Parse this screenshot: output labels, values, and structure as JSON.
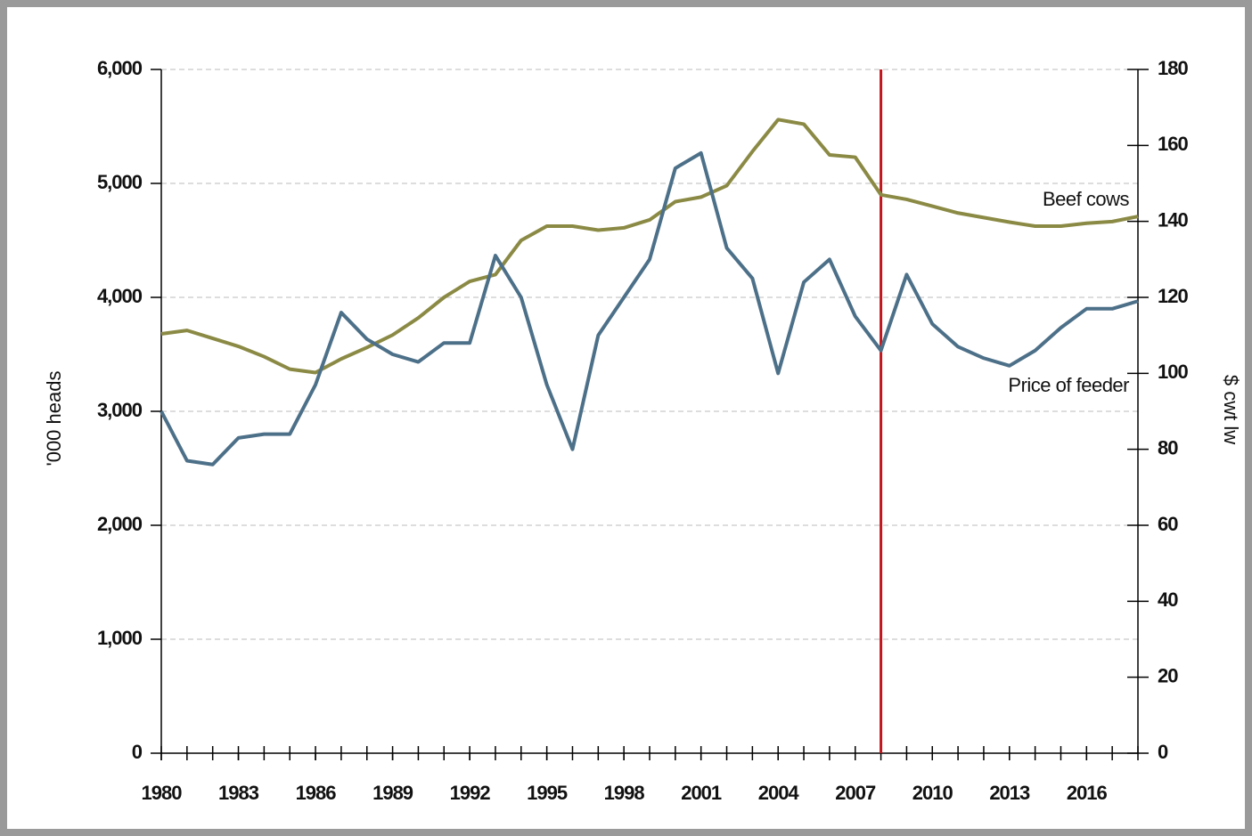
{
  "chart_data": {
    "type": "line",
    "x": [
      1980,
      1981,
      1982,
      1983,
      1984,
      1985,
      1986,
      1987,
      1988,
      1989,
      1990,
      1991,
      1992,
      1993,
      1994,
      1995,
      1996,
      1997,
      1998,
      1999,
      2000,
      2001,
      2002,
      2003,
      2004,
      2005,
      2006,
      2007,
      2008,
      2009,
      2010,
      2011,
      2012,
      2013,
      2014,
      2015,
      2016,
      2017,
      2018
    ],
    "series": [
      {
        "name": "Beef cows",
        "color": "#8b8a45",
        "values": [
          3680,
          3710,
          3640,
          3570,
          3480,
          3370,
          3340,
          3460,
          3560,
          3670,
          3820,
          4000,
          4140,
          4200,
          4500,
          4625,
          4625,
          4590,
          4610,
          4680,
          4840,
          4880,
          4980,
          5280,
          5560,
          5520,
          5250,
          5230,
          4900,
          4860,
          4800,
          4740,
          4700,
          4660,
          4625,
          4625,
          4650,
          4665,
          4710
        ]
      },
      {
        "name": "Price of feeder",
        "color": "#4d7089",
        "axis": "y2",
        "values": [
          90,
          77,
          76,
          83,
          84,
          84,
          97,
          116,
          109,
          105,
          103,
          108,
          108,
          131,
          120,
          97,
          80,
          110,
          120,
          130,
          154,
          158,
          133,
          125,
          100,
          124,
          130,
          115,
          106,
          126,
          113,
          107,
          104,
          102,
          106,
          112,
          117,
          117,
          119
        ]
      }
    ],
    "xlim": [
      1980,
      2018
    ],
    "xticks": [
      1980,
      1983,
      1986,
      1989,
      1992,
      1995,
      1998,
      2001,
      2004,
      2007,
      2010,
      2013,
      2016
    ],
    "ylim": [
      0,
      6000
    ],
    "yticks": [
      0,
      {
        "value": 1000,
        "label": "1,000"
      },
      {
        "value": 2000,
        "label": "2,000"
      },
      {
        "value": 3000,
        "label": "3,000"
      },
      {
        "value": 4000,
        "label": "4,000"
      },
      {
        "value": 5000,
        "label": "5,000"
      },
      {
        "value": 6000,
        "label": "6,000"
      }
    ],
    "y2lim": [
      0,
      180
    ],
    "y2ticks": [
      0,
      20,
      40,
      60,
      80,
      100,
      120,
      140,
      160,
      180
    ],
    "ylabel": "'000 heads",
    "y2label": "$ cwt lw",
    "vline": {
      "x": 2008,
      "color": "#c0161c"
    },
    "grid": true
  }
}
